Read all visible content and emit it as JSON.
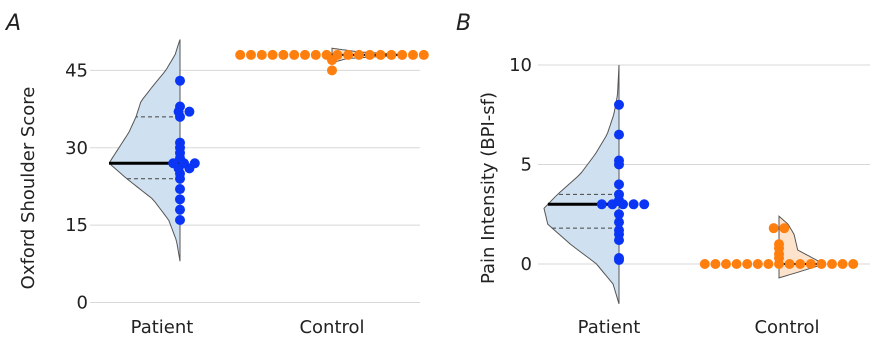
{
  "colors": {
    "patient_dot": "#0a35f5",
    "control_dot": "#ff7f0e",
    "patient_fill": "#cfe0f1",
    "control_fill": "#fde3cc",
    "outline": "#555555",
    "grid": "#d8d8d8"
  },
  "chart_data": [
    {
      "panel": "A",
      "type": "violin_swarm",
      "ylabel": "Oxford Shoulder Score",
      "ylim": [
        0,
        51
      ],
      "yticks": [
        0,
        15,
        30,
        45
      ],
      "categories": [
        "Patient",
        "Control"
      ],
      "grid": "horizontal",
      "series": [
        {
          "category": "Patient",
          "values": [
            16,
            18,
            20,
            22,
            24,
            25,
            26,
            26,
            27,
            27,
            27,
            28,
            29,
            30,
            31,
            36,
            37,
            37,
            38,
            43
          ],
          "median": 27,
          "quartiles": [
            24,
            36
          ],
          "violin": {
            "range": [
              8,
              51
            ],
            "profile": [
              [
                8,
                0.0
              ],
              [
                12,
                0.05
              ],
              [
                16,
                0.16
              ],
              [
                20,
                0.38
              ],
              [
                24,
                0.75
              ],
              [
                27,
                1.0
              ],
              [
                30,
                0.86
              ],
              [
                33,
                0.72
              ],
              [
                36,
                0.62
              ],
              [
                39,
                0.55
              ],
              [
                42,
                0.38
              ],
              [
                45,
                0.2
              ],
              [
                48,
                0.07
              ],
              [
                51,
                0.0
              ]
            ]
          }
        },
        {
          "category": "Control",
          "values": [
            45,
            47,
            48,
            48,
            48,
            48,
            48,
            48,
            48,
            48,
            48,
            48,
            48,
            48,
            48,
            48,
            48,
            48,
            48,
            48
          ],
          "median": 48,
          "quartiles": [
            48,
            48
          ],
          "violin": {
            "range": [
              46.5,
              49.3
            ],
            "profile": [
              [
                46.5,
                0.0
              ],
              [
                47.3,
                0.2
              ],
              [
                48,
                1.0
              ],
              [
                48.6,
                0.35
              ],
              [
                49.3,
                0.0
              ]
            ]
          }
        }
      ]
    },
    {
      "panel": "B",
      "type": "violin_swarm",
      "ylabel": "Pain Intensity (BPI-sf)",
      "ylim": [
        -2,
        10
      ],
      "yticks": [
        0,
        5,
        10
      ],
      "categories": [
        "Patient",
        "Control"
      ],
      "grid": "horizontal",
      "series": [
        {
          "category": "Patient",
          "values": [
            0.2,
            0.3,
            1.2,
            1.5,
            1.7,
            2.1,
            2.5,
            3.0,
            3.0,
            3.0,
            3.0,
            3.0,
            3.2,
            3.5,
            4.0,
            5.0,
            5.2,
            6.5,
            8.0
          ],
          "median": 3.0,
          "quartiles": [
            1.8,
            3.5
          ],
          "violin": {
            "range": [
              -2,
              10
            ],
            "profile": [
              [
                -2,
                0.0
              ],
              [
                -1,
                0.08
              ],
              [
                0,
                0.3
              ],
              [
                1,
                0.65
              ],
              [
                2,
                0.95
              ],
              [
                2.8,
                1.0
              ],
              [
                3.5,
                0.82
              ],
              [
                4.5,
                0.52
              ],
              [
                5.5,
                0.32
              ],
              [
                6.5,
                0.16
              ],
              [
                7.5,
                0.07
              ],
              [
                8.5,
                0.02
              ],
              [
                10,
                0.0
              ]
            ]
          }
        },
        {
          "category": "Control",
          "values": [
            0,
            0,
            0,
            0,
            0,
            0,
            0,
            0,
            0,
            0,
            0,
            0,
            0,
            0,
            0,
            0.3,
            0.5,
            0.8,
            1.0,
            1.8,
            1.8
          ],
          "median": 0,
          "quartiles": [
            0,
            0
          ],
          "violin": {
            "range": [
              -0.7,
              2.4
            ],
            "profile": [
              [
                -0.7,
                0.0
              ],
              [
                -0.3,
                0.35
              ],
              [
                0,
                0.6
              ],
              [
                0.2,
                0.5
              ],
              [
                0.7,
                0.25
              ],
              [
                1.5,
                0.2
              ],
              [
                2.0,
                0.12
              ],
              [
                2.4,
                0.0
              ]
            ]
          }
        }
      ]
    }
  ]
}
